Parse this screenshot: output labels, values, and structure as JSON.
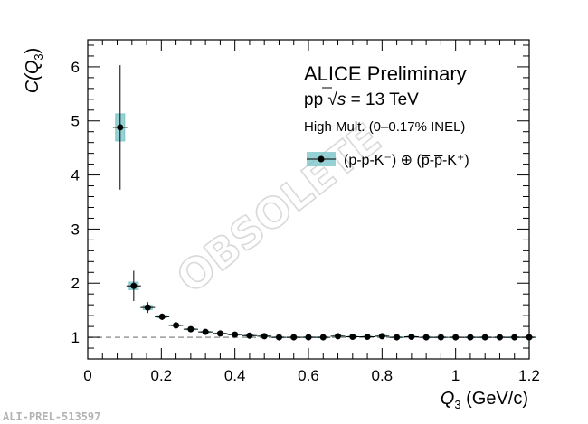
{
  "chart_data": {
    "type": "scatter",
    "x": [
      0.088,
      0.125,
      0.163,
      0.202,
      0.24,
      0.28,
      0.32,
      0.36,
      0.4,
      0.44,
      0.48,
      0.52,
      0.56,
      0.6,
      0.64,
      0.68,
      0.72,
      0.76,
      0.8,
      0.84,
      0.88,
      0.92,
      0.96,
      1.0,
      1.04,
      1.08,
      1.12,
      1.16,
      1.2
    ],
    "series": [
      {
        "name": "(p-p-K⁻) ⊕ (p̅-p̅-K⁺)",
        "values": [
          4.88,
          1.95,
          1.55,
          1.38,
          1.22,
          1.15,
          1.1,
          1.07,
          1.05,
          1.03,
          1.02,
          1.0,
          1.0,
          1.0,
          1.0,
          1.02,
          1.01,
          1.01,
          1.02,
          1.0,
          1.01,
          1.0,
          1.0,
          1.0,
          1.0,
          1.0,
          1.0,
          1.0,
          1.0
        ],
        "stat_err": [
          1.15,
          0.28,
          0.1,
          0.06,
          0.03,
          0.02,
          0.02,
          0.015,
          0.01,
          0.01,
          0.01,
          0.01,
          0.01,
          0.01,
          0.01,
          0.01,
          0.01,
          0.01,
          0.01,
          0.01,
          0.01,
          0.01,
          0.01,
          0.01,
          0.01,
          0.01,
          0.01,
          0.01,
          0.01
        ],
        "sys_err": [
          0.25,
          0.07,
          0.04,
          0.02,
          0.01,
          0.01,
          0.01,
          0.01,
          0.01,
          0.01,
          0.01,
          0.01,
          0.01,
          0.01,
          0.01,
          0.01,
          0.01,
          0.01,
          0.01,
          0.01,
          0.01,
          0.01,
          0.01,
          0.01,
          0.01,
          0.01,
          0.01,
          0.01,
          0.01
        ],
        "color": "#000000",
        "sys_color": "#7cc5c9"
      }
    ],
    "xlabel_main": "Q",
    "xlabel_sub": "3",
    "xlabel_unit": " (GeV/c)",
    "ylabel_main": "C(Q",
    "ylabel_sub": "3",
    "ylabel_close": ")",
    "xlim": [
      0,
      1.2
    ],
    "ylim": [
      0.6,
      6.5
    ],
    "xticks": [
      "0",
      "0.2",
      "0.4",
      "0.6",
      "0.8",
      "1",
      "1.2"
    ],
    "yticks": [
      "1",
      "2",
      "3",
      "4",
      "5",
      "6"
    ],
    "reference_line": 1,
    "grid": false,
    "legend_position": "top-right"
  },
  "annotations": {
    "title": "ALICE Preliminary",
    "system_prefix": "pp ",
    "sqrt_symbol": "√",
    "energy_var": "s",
    "energy_value": " = 13 TeV",
    "multiplicity": "High Mult. (0–0.17% INEL)"
  },
  "watermark": "OBSOLETE",
  "figure_id": "ALI-PREL-513597"
}
